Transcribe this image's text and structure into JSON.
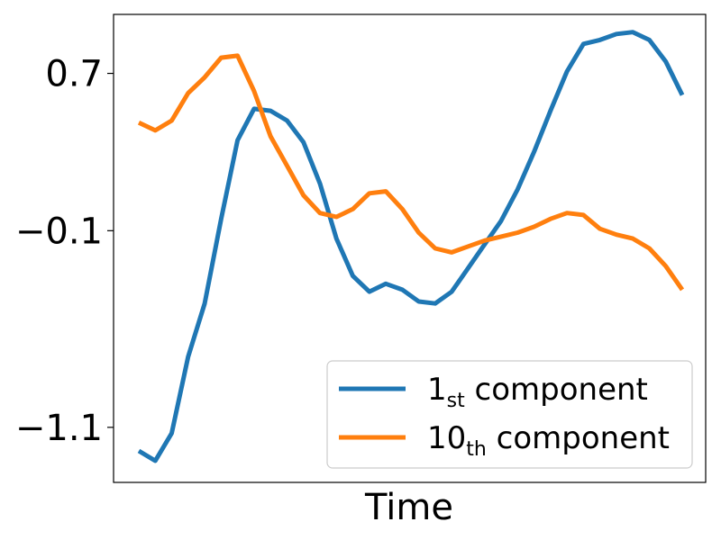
{
  "chart_data": {
    "type": "line",
    "xlabel": "Time",
    "ylabel": "",
    "ylim": [
      -1.38,
      1.0
    ],
    "yticks": [
      {
        "value": 0.7,
        "label": "0.7"
      },
      {
        "value": -0.1,
        "label": "−0.1"
      },
      {
        "value": -1.1,
        "label": "−1.1"
      }
    ],
    "x": [
      0,
      1,
      2,
      3,
      4,
      5,
      6,
      7,
      8,
      9,
      10,
      11,
      12,
      13,
      14,
      15,
      16,
      17,
      18,
      19,
      20,
      21,
      22,
      23,
      24,
      25,
      26,
      27,
      28,
      29,
      30,
      31,
      32,
      33
    ],
    "series": [
      {
        "name_main": "1",
        "name_sub": "st",
        "name_rest": " component",
        "color": "#1f77b4",
        "values": [
          -1.22,
          -1.27,
          -1.13,
          -0.74,
          -0.47,
          -0.04,
          0.36,
          0.52,
          0.51,
          0.46,
          0.35,
          0.14,
          -0.14,
          -0.33,
          -0.41,
          -0.37,
          -0.4,
          -0.46,
          -0.47,
          -0.41,
          -0.29,
          -0.17,
          -0.05,
          0.11,
          0.3,
          0.51,
          0.71,
          0.85,
          0.87,
          0.9,
          0.91,
          0.87,
          0.76,
          0.59
        ]
      },
      {
        "name_main": "10",
        "name_sub": "th",
        "name_rest": " component",
        "color": "#ff7f0e",
        "values": [
          0.45,
          0.41,
          0.46,
          0.6,
          0.68,
          0.78,
          0.79,
          0.61,
          0.38,
          0.23,
          0.08,
          -0.01,
          -0.03,
          0.01,
          0.09,
          0.1,
          0.01,
          -0.11,
          -0.19,
          -0.21,
          -0.18,
          -0.15,
          -0.13,
          -0.11,
          -0.08,
          -0.04,
          -0.01,
          -0.02,
          -0.09,
          -0.12,
          -0.14,
          -0.19,
          -0.28,
          -0.4
        ]
      }
    ],
    "grid": false,
    "legend_position": "lower-right"
  }
}
